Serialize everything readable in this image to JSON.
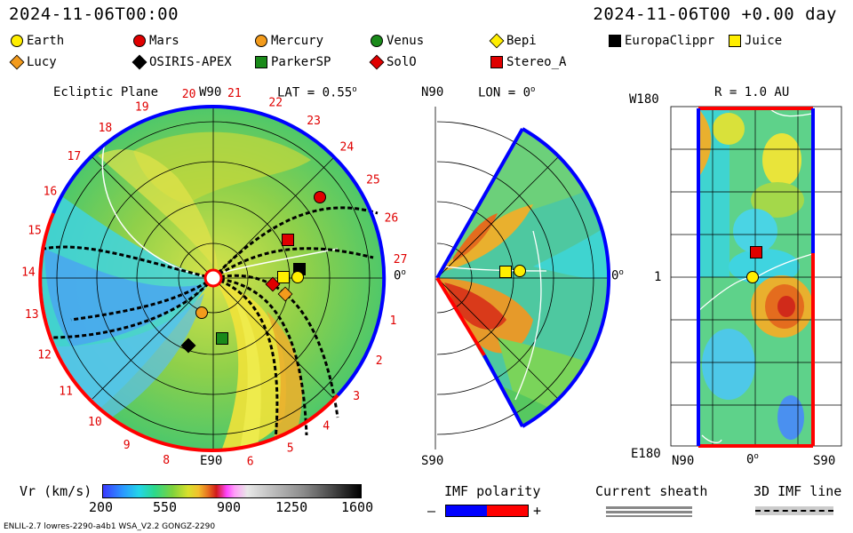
{
  "header": {
    "left_timestamp": "2024-11-06T00:00",
    "right_timestamp": "2024-11-06T00 +0.00 day"
  },
  "legend": [
    {
      "name": "Earth",
      "shape": "circle",
      "color": "#ffee00",
      "border": "#000000"
    },
    {
      "name": "Mars",
      "shape": "circle",
      "color": "#e00000",
      "border": "#000000"
    },
    {
      "name": "Mercury",
      "shape": "circle",
      "color": "#f39b1c",
      "border": "#000000"
    },
    {
      "name": "Venus",
      "shape": "circle",
      "color": "#1a8a1a",
      "border": "#000000"
    },
    {
      "name": "Bepi",
      "shape": "diamond",
      "color": "#ffee00",
      "border": "#000000"
    },
    {
      "name": "EuropaClippr",
      "shape": "square",
      "color": "#000000",
      "border": "#000000"
    },
    {
      "name": "Juice",
      "shape": "square",
      "color": "#ffee00",
      "border": "#000000"
    },
    {
      "name": "Lucy",
      "shape": "diamond",
      "color": "#f39b1c",
      "border": "#000000"
    },
    {
      "name": "OSIRIS-APEX",
      "shape": "diamond",
      "color": "#000000",
      "border": "#000000"
    },
    {
      "name": "ParkerSP",
      "shape": "square",
      "color": "#1a8a1a",
      "border": "#000000"
    },
    {
      "name": "SolO",
      "shape": "diamond",
      "color": "#e00000",
      "border": "#000000"
    },
    {
      "name": "Stereo_A",
      "shape": "square",
      "color": "#e00000",
      "border": "#000000"
    }
  ],
  "ecliptic_panel": {
    "title": "Ecliptic Plane",
    "lat_label": "LAT = 0.55",
    "deg_symbol": "o",
    "top_label": "W90",
    "bottom_label": "E90",
    "right_label": "0",
    "sector_numbers": [
      "1",
      "2",
      "3",
      "4",
      "5",
      "6",
      "8",
      "9",
      "10",
      "11",
      "12",
      "13",
      "14",
      "15",
      "16",
      "17",
      "18",
      "19",
      "20",
      "21",
      "22",
      "23",
      "24",
      "25",
      "26",
      "27"
    ]
  },
  "meridional_panel": {
    "top_left": "N90",
    "lon_label": "LON = 0",
    "right_label": "0",
    "bottom_left": "S90"
  },
  "latlon_panel": {
    "title": "R = 1.0 AU",
    "top_left": "W180",
    "mid_left": "1",
    "bottom_left": "E180",
    "x_labels": [
      "N90",
      "0",
      "S90"
    ]
  },
  "colorbar": {
    "label": "Vr (km/s)",
    "ticks": [
      "200",
      "550",
      "900",
      "1250",
      "1600"
    ],
    "range": [
      200,
      1600
    ]
  },
  "imf_polarity": {
    "label": "IMF polarity",
    "minus": "–",
    "plus": "+",
    "colors": [
      "#0000ff",
      "#ff0000"
    ]
  },
  "current_sheath": {
    "label": "Current sheath"
  },
  "imf_line": {
    "label": "3D IMF line"
  },
  "footer": {
    "left": "ENLIL-2.7 lowres-2290-a4b1 WSA_V2.2 GONGZ-2290"
  }
}
